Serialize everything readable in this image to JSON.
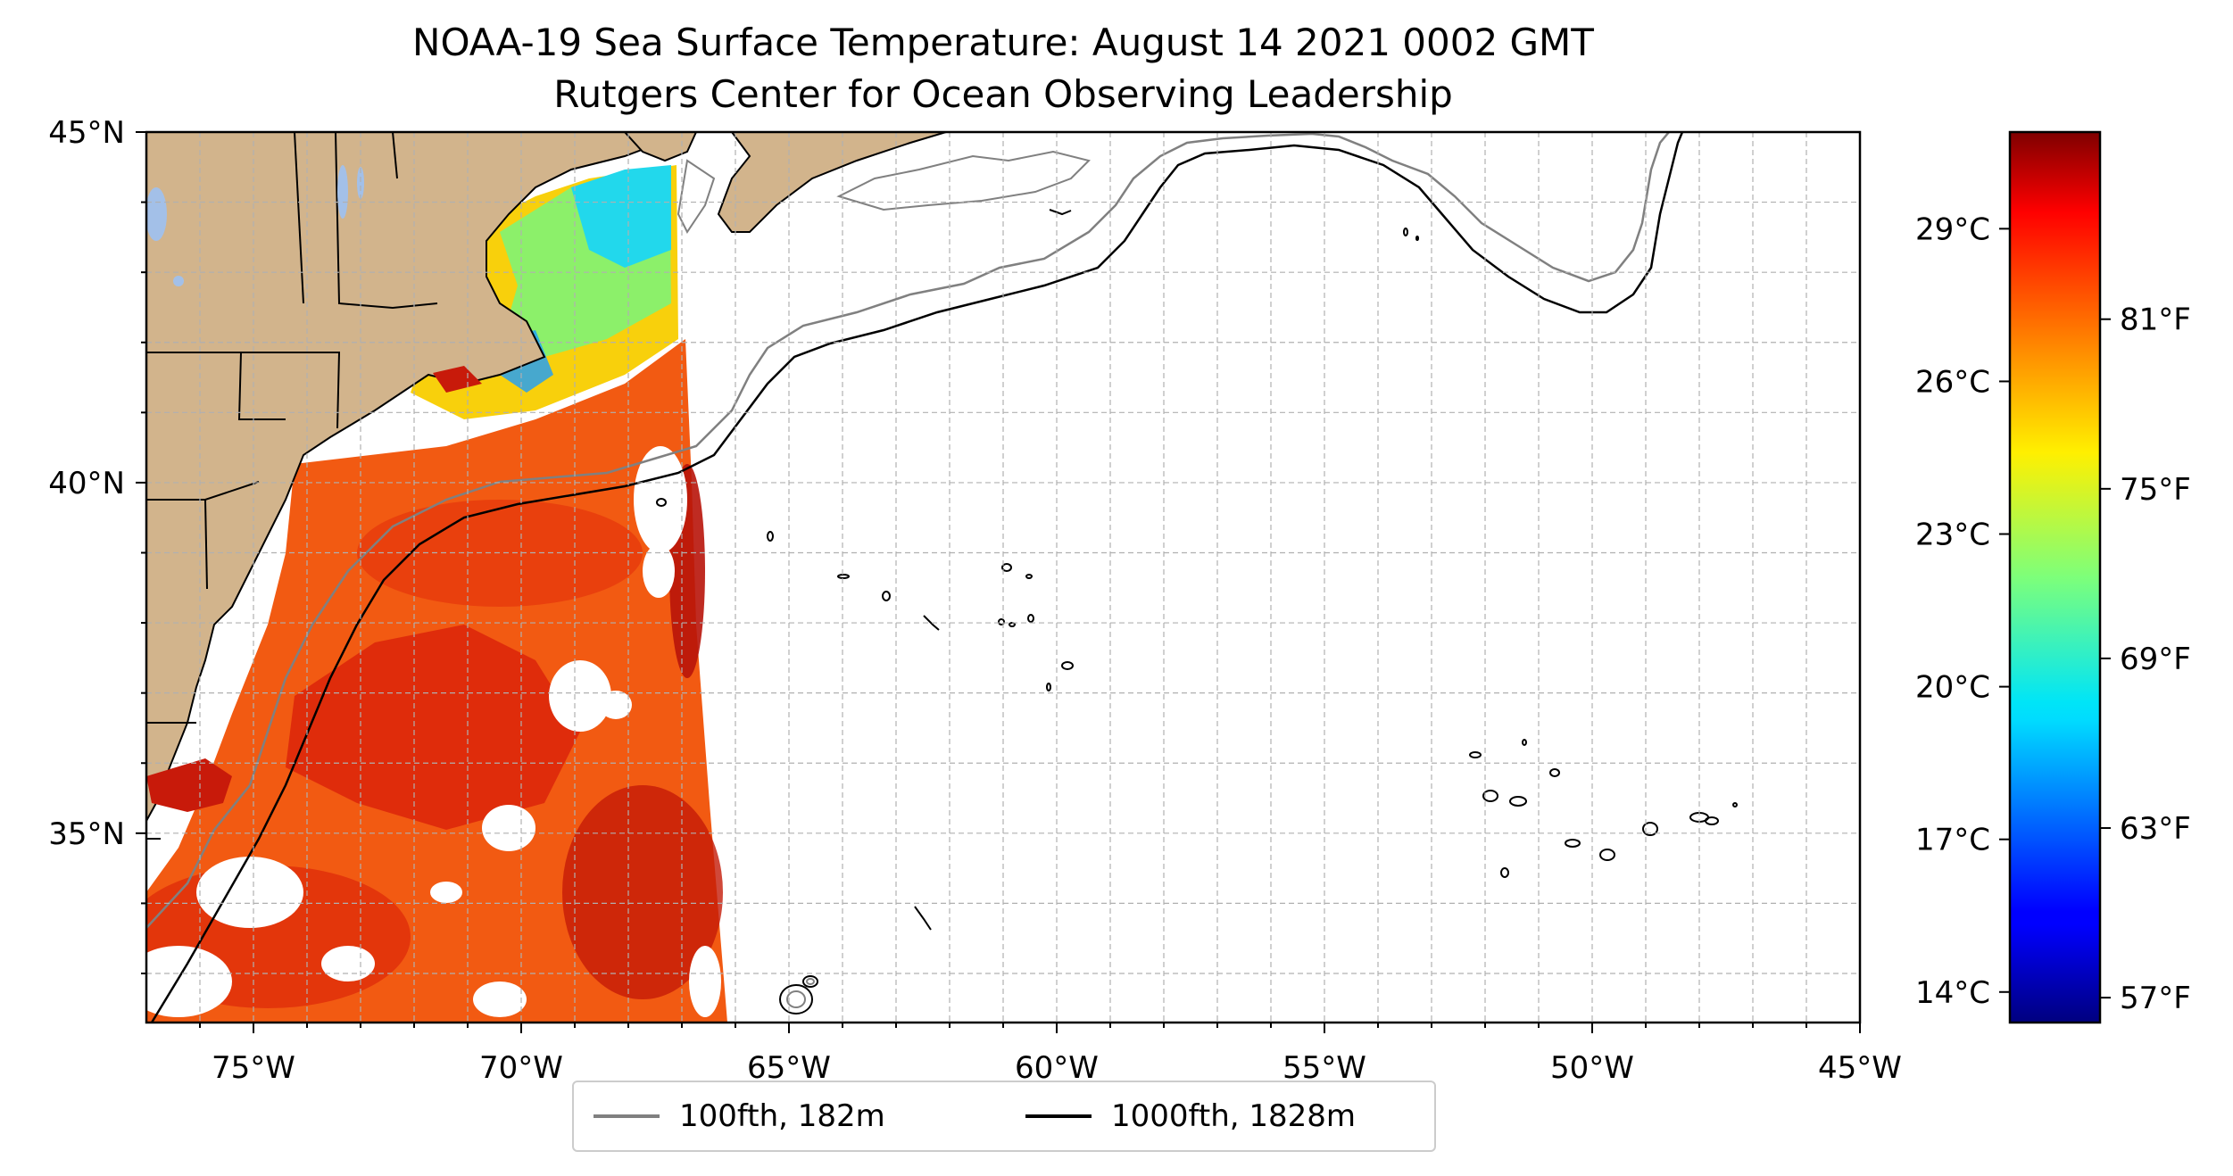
{
  "title": {
    "line1": "NOAA-19 Sea Surface Temperature: August 14 2021 0002 GMT",
    "line2": "Rutgers Center for Ocean Observing Leadership"
  },
  "map": {
    "lon_range": [
      -77,
      -45
    ],
    "lat_range": [
      32.3,
      45
    ],
    "lon_ticks": [
      "75°W",
      "70°W",
      "65°W",
      "60°W",
      "55°W",
      "50°W",
      "45°W"
    ],
    "lat_ticks": [
      "35°N",
      "40°N",
      "45°N"
    ],
    "gridlines": true,
    "land_color": "#d2b48c",
    "ocean_color": "#ffffff"
  },
  "legend": {
    "placement": "bottom-center",
    "entries": [
      {
        "label": "100fth, 182m",
        "color": "#808080"
      },
      {
        "label": "1000fth, 1828m",
        "color": "#000000"
      }
    ]
  },
  "colorbar": {
    "colormap": "jet",
    "celsius_ticks": [
      "29°C",
      "26°C",
      "23°C",
      "20°C",
      "17°C",
      "14°C"
    ],
    "fahrenheit_ticks": [
      "81°F",
      "75°F",
      "69°F",
      "63°F",
      "57°F"
    ]
  }
}
